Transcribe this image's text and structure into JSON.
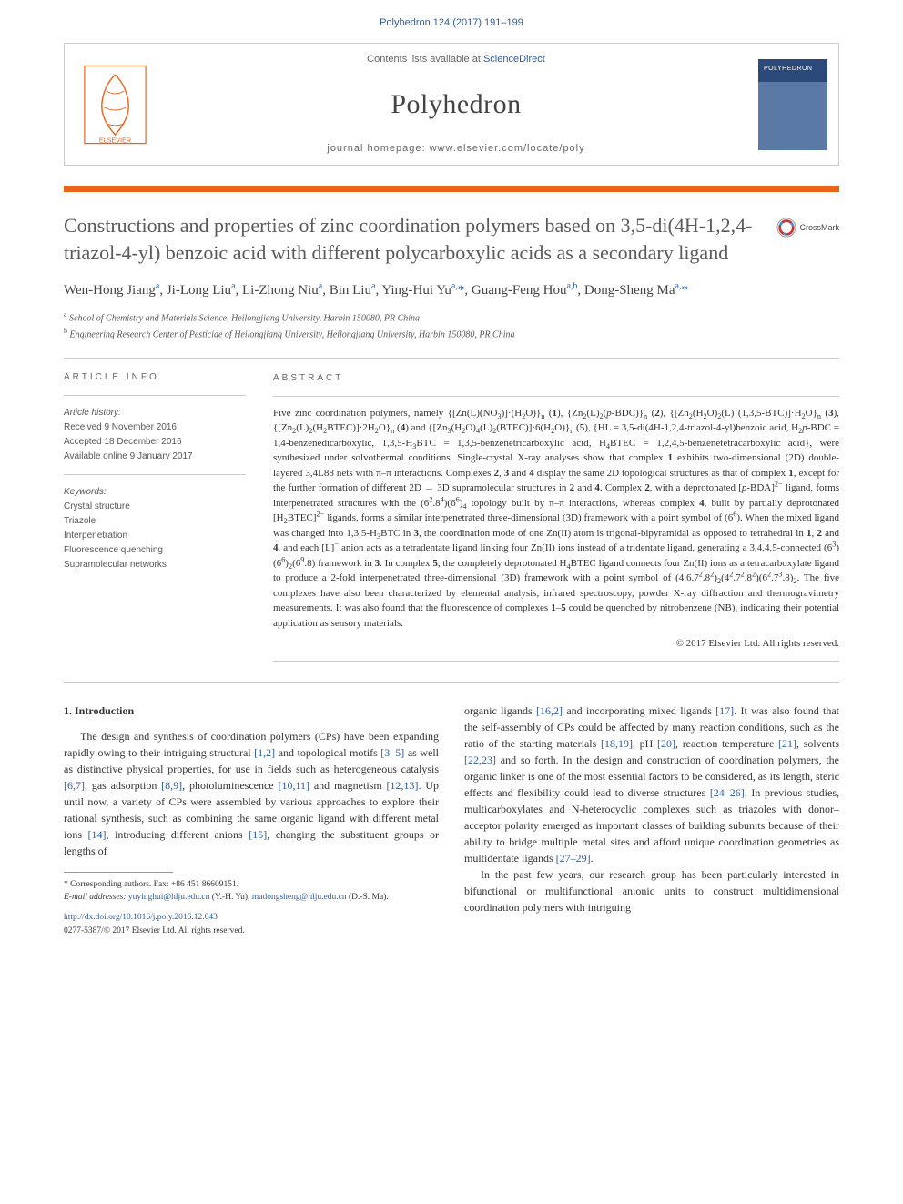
{
  "citation": "Polyhedron 124 (2017) 191–199",
  "header": {
    "contents_prefix": "Contents lists available at ",
    "contents_link": "ScienceDirect",
    "journal": "Polyhedron",
    "homepage_prefix": "journal homepage: ",
    "homepage": "www.elsevier.com/locate/poly"
  },
  "crossmark": "CrossMark",
  "title": "Constructions and properties of zinc coordination polymers based on 3,5-di(4H-1,2,4-triazol-4-yl) benzoic acid with different polycarboxylic acids as a secondary ligand",
  "authors_html": "Wen-Hong Jiang<span class='aff'>a</span>, Ji-Long Liu<span class='aff'>a</span>, Li-Zhong Niu<span class='aff'>a</span>, Bin Liu<span class='aff'>a</span>, Ying-Hui Yu<span class='aff'>a,</span><span class='star'>*</span>, Guang-Feng Hou<span class='aff'>a,b</span>, Dong-Sheng Ma<span class='aff'>a,</span><span class='star'>*</span>",
  "affiliations": [
    {
      "sup": "a",
      "text": "School of Chemistry and Materials Science, Heilongjiang University, Harbin 150080, PR China"
    },
    {
      "sup": "b",
      "text": "Engineering Research Center of Pesticide of Heilongjiang University, Heilongjiang University, Harbin 150080, PR China"
    }
  ],
  "article_info": {
    "heading": "ARTICLE INFO",
    "history_label": "Article history:",
    "history": [
      "Received 9 November 2016",
      "Accepted 18 December 2016",
      "Available online 9 January 2017"
    ],
    "keywords_label": "Keywords:",
    "keywords": [
      "Crystal structure",
      "Triazole",
      "Interpenetration",
      "Fluorescence quenching",
      "Supramolecular networks"
    ]
  },
  "abstract": {
    "heading": "ABSTRACT",
    "body_html": "Five zinc coordination polymers, namely {[Zn(L)(NO<sub>3</sub>)]·(H<sub>2</sub>O)}<sub>n</sub> (<b>1</b>), {Zn<sub>2</sub>(L)<sub>2</sub>(<i>p</i>-BDC)}<sub>n</sub> (<b>2</b>), {[Zn<sub>2</sub>(H<sub>2</sub>O)<sub>2</sub>(L) (1,3,5-BTC)]·H<sub>2</sub>O}<sub>n</sub> (<b>3</b>), {[Zn<sub>2</sub>(L)<sub>2</sub>(H<sub>2</sub>BTEC)]·2H<sub>2</sub>O}<sub>n</sub> (<b>4</b>) and {[Zn<sub>3</sub>(H<sub>2</sub>O)<sub>4</sub>(L)<sub>2</sub>(BTEC)]·6(H<sub>2</sub>O)}<sub>n</sub> (<b>5</b>), {HL = 3,5-di(4H-1,2,4-triazol-4-yl)benzoic acid, H<sub>2</sub><i>p</i>-BDC = 1,4-benzenedicarboxylic, 1,3,5-H<sub>3</sub>BTC = 1,3,5-benzenetricarboxylic acid, H<sub>4</sub>BTEC = 1,2,4,5-benzenetetracarboxylic acid}, were synthesized under solvothermal conditions. Single-crystal X-ray analyses show that complex <b>1</b> exhibits two-dimensional (2D) double-layered 3,4L88 nets with π–π interactions. Complexes <b>2</b>, <b>3</b> and <b>4</b> display the same 2D topological structures as that of complex <b>1</b>, except for the further formation of different 2D → 3D supramolecular structures in <b>2</b> and <b>4</b>. Complex <b>2</b>, with a deprotonated [<i>p</i>-BDA]<sup>2−</sup> ligand, forms interpenetrated structures with the (6<sup>2</sup>.8<sup>4</sup>)(6<sup>6</sup>)<sub>4</sub> topology built by π–π interactions, whereas complex <b>4</b>, built by partially deprotonated [H<sub>2</sub>BTEC]<sup>2−</sup> ligands, forms a similar interpenetrated three-dimensional (3D) framework with a point symbol of (6<sup>6</sup>). When the mixed ligand was changed into 1,3,5-H<sub>3</sub>BTC in <b>3</b>, the coordination mode of one Zn(II) atom is trigonal-bipyramidal as opposed to tetrahedral in <b>1</b>, <b>2</b> and <b>4</b>, and each [L]<sup>−</sup> anion acts as a tetradentate ligand linking four Zn(II) ions instead of a tridentate ligand, generating a 3,4,4,5-connected (6<sup>3</sup>)(6<sup>6</sup>)<sub>2</sub>(6<sup>9</sup>.8) framework in <b>3</b>. In complex <b>5</b>, the completely deprotonated H<sub>4</sub>BTEC ligand connects four Zn(II) ions as a tetracarboxylate ligand to produce a 2-fold interpenetrated three-dimensional (3D) framework with a point symbol of (4.6.7<sup>2</sup>.8<sup>2</sup>)<sub>2</sub>(4<sup>2</sup>.7<sup>2</sup>.8<sup>2</sup>)(6<sup>2</sup>.7<sup>3</sup>.8)<sub>2</sub>. The five complexes have also been characterized by elemental analysis, infrared spectroscopy, powder X-ray diffraction and thermogravimetry measurements. It was also found that the fluorescence of complexes <b>1</b>–<b>5</b> could be quenched by nitrobenzene (NB), indicating their potential application as sensory materials.",
    "copyright": "© 2017 Elsevier Ltd. All rights reserved."
  },
  "intro": {
    "heading": "1. Introduction",
    "p1_html": "The design and synthesis of coordination polymers (CPs) have been expanding rapidly owing to their intriguing structural <a href='#'>[1,2]</a> and topological motifs <a href='#'>[3–5]</a> as well as distinctive physical properties, for use in fields such as heterogeneous catalysis <a href='#'>[6,7]</a>, gas adsorption <a href='#'>[8,9]</a>, photoluminescence <a href='#'>[10,11]</a> and magnetism <a href='#'>[12,13]</a>. Up until now, a variety of CPs were assembled by various approaches to explore their rational synthesis, such as combining the same organic ligand with different metal ions <a href='#'>[14]</a>, introducing different anions <a href='#'>[15]</a>, changing the substituent groups or lengths of ",
    "p2_html": "organic ligands <a href='#'>[16,2]</a> and incorporating mixed ligands <a href='#'>[17]</a>. It was also found that the self-assembly of CPs could be affected by many reaction conditions, such as the ratio of the starting materials <a href='#'>[18,19]</a>, pH <a href='#'>[20]</a>, reaction temperature <a href='#'>[21]</a>, solvents <a href='#'>[22,23]</a> and so forth. In the design and construction of coordination polymers, the organic linker is one of the most essential factors to be considered, as its length, steric effects and flexibility could lead to diverse structures <a href='#'>[24–26]</a>. In previous studies, multicarboxylates and N-heterocyclic complexes such as triazoles with donor–acceptor polarity emerged as important classes of building subunits because of their ability to bridge multiple metal sites and afford unique coordination geometries as multidentate ligands <a href='#'>[27–29]</a>.",
    "p3_html": "In the past few years, our research group has been particularly interested in bifunctional or multifunctional anionic units to construct multidimensional coordination polymers with intriguing"
  },
  "footnotes": {
    "corr": "* Corresponding authors. Fax: +86 451 86609151.",
    "email_label": "E-mail addresses: ",
    "email1": "yuyinghui@hlju.edu.cn",
    "email1_who": " (Y.-H. Yu), ",
    "email2": "madongsheng@hlju.edu.cn",
    "email2_who": " (D.-S. Ma)."
  },
  "doi": {
    "url": "http://dx.doi.org/10.1016/j.poly.2016.12.043",
    "issn": "0277-5387/© 2017 Elsevier Ltd. All rights reserved."
  },
  "colors": {
    "link": "#2e5c9e",
    "orange": "#e8641b",
    "text": "#333333",
    "muted": "#666666",
    "border": "#cccccc"
  }
}
